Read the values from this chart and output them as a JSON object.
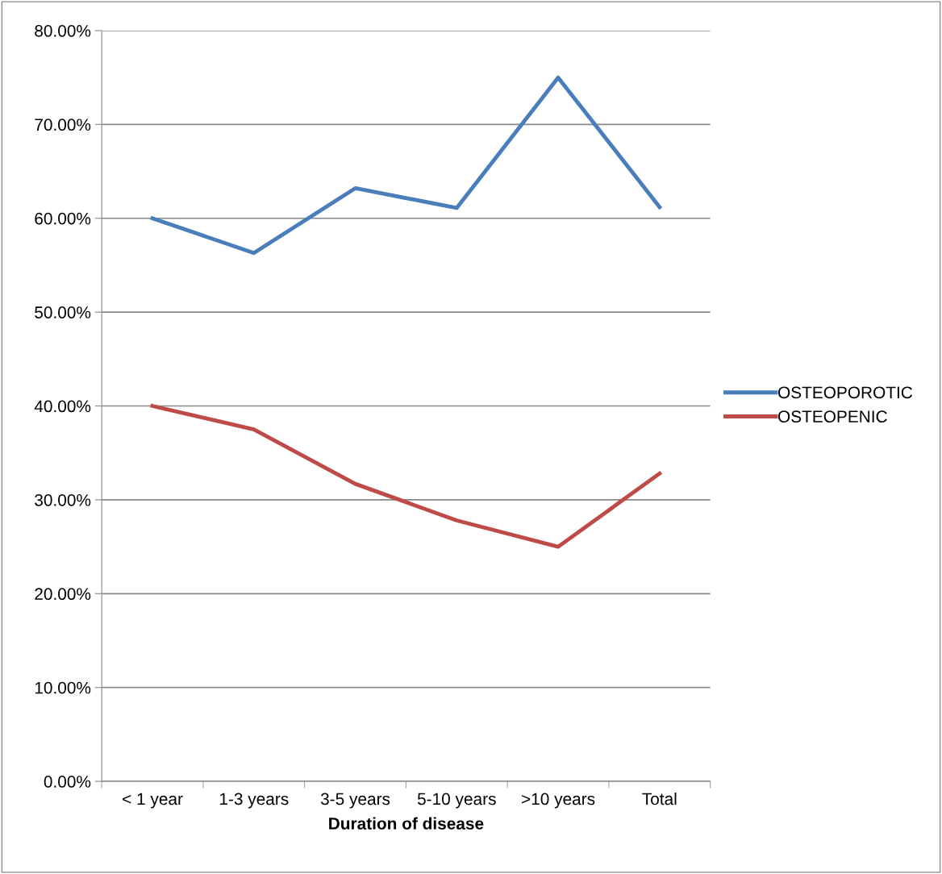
{
  "chart_data": {
    "type": "line",
    "xlabel": "Duration of disease",
    "categories": [
      "< 1 year",
      "1-3 years",
      "3-5 years",
      "5-10 years",
      ">10 years",
      "Total"
    ],
    "series": [
      {
        "name": "OSTEOPOROTIC",
        "color": "#4a7ebb",
        "values": [
          60.0,
          56.3,
          63.2,
          61.1,
          75.0,
          61.2
        ]
      },
      {
        "name": "OSTEOPENIC",
        "color": "#be4b48",
        "values": [
          40.0,
          37.5,
          31.7,
          27.8,
          25.0,
          32.8
        ]
      }
    ],
    "ylim": [
      0,
      80
    ],
    "yticks": [
      {
        "value": 0,
        "label": "0.00%"
      },
      {
        "value": 10,
        "label": "10.00%"
      },
      {
        "value": 20,
        "label": "20.00%"
      },
      {
        "value": 30,
        "label": "30.00%"
      },
      {
        "value": 40,
        "label": "40.00%"
      },
      {
        "value": 50,
        "label": "50.00%"
      },
      {
        "value": 60,
        "label": "60.00%"
      },
      {
        "value": 70,
        "label": "70.00%"
      },
      {
        "value": 80,
        "label": "80.00%"
      }
    ],
    "grid": "y",
    "legend": "right",
    "marker": "none",
    "line_style": "solid"
  }
}
